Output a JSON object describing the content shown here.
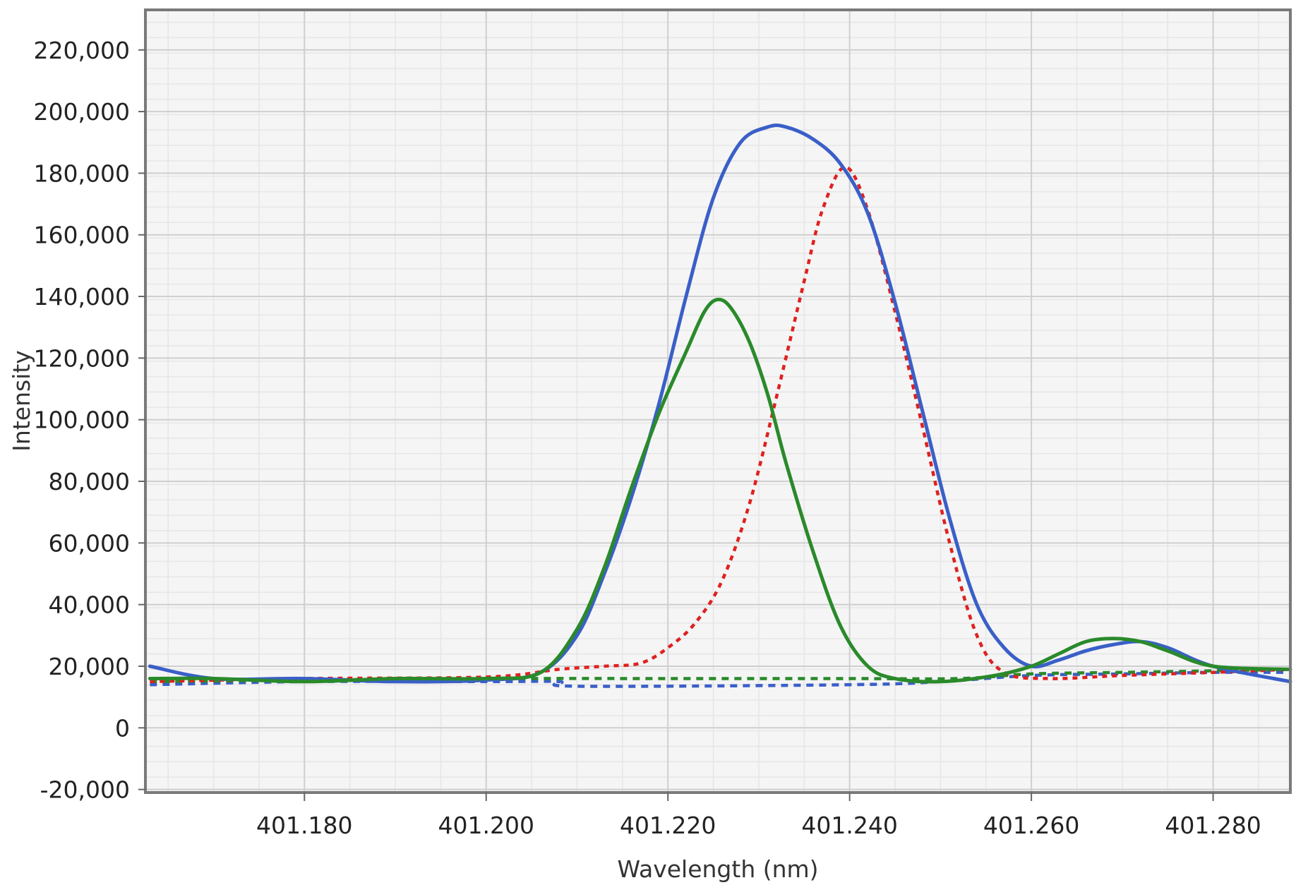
{
  "chart_data": {
    "type": "line",
    "title": "",
    "xlabel": "Wavelength (nm)",
    "ylabel": "Intensity",
    "xlim": [
      401.1625,
      401.2885
    ],
    "ylim": [
      -21000,
      233000
    ],
    "grid": true,
    "legend": "none",
    "x_ticks": [
      401.18,
      401.2,
      401.22,
      401.24,
      401.26,
      401.28
    ],
    "x_tick_labels": [
      "401.180",
      "401.200",
      "401.220",
      "401.240",
      "401.260",
      "401.280"
    ],
    "y_ticks": [
      -20000,
      0,
      20000,
      40000,
      60000,
      80000,
      100000,
      120000,
      140000,
      160000,
      180000,
      200000,
      220000
    ],
    "y_tick_labels": [
      "-20,000",
      "0",
      "20,000",
      "40,000",
      "60,000",
      "80,000",
      "100,000",
      "120,000",
      "140,000",
      "160,000",
      "180,000",
      "200,000",
      "220,000"
    ],
    "series": [
      {
        "color": "#3a5fc8",
        "style": "solid",
        "x": [
          401.163,
          401.17,
          401.18,
          401.19,
          401.2,
          401.206,
          401.21,
          401.213,
          401.216,
          401.219,
          401.222,
          401.225,
          401.228,
          401.231,
          401.233,
          401.236,
          401.239,
          401.242,
          401.245,
          401.248,
          401.251,
          401.254,
          401.257,
          401.26,
          401.263,
          401.266,
          401.269,
          401.272,
          401.275,
          401.28,
          401.2885
        ],
        "y": [
          20000,
          16000,
          16000,
          15000,
          15500,
          18000,
          30000,
          50000,
          75000,
          105000,
          140000,
          172000,
          190000,
          195000,
          195000,
          191000,
          183000,
          167000,
          138000,
          103000,
          68000,
          40000,
          26000,
          20000,
          22000,
          25000,
          27000,
          28000,
          26000,
          20000,
          15000
        ]
      },
      {
        "color": "#2a8a2a",
        "style": "solid",
        "x": [
          401.163,
          401.17,
          401.18,
          401.19,
          401.2,
          401.206,
          401.21,
          401.213,
          401.216,
          401.219,
          401.222,
          401.224,
          401.2255,
          401.227,
          401.229,
          401.231,
          401.233,
          401.236,
          401.239,
          401.242,
          401.245,
          401.25,
          401.256,
          401.26,
          401.263,
          401.266,
          401.269,
          401.272,
          401.275,
          401.28,
          401.2885
        ],
        "y": [
          16000,
          16000,
          15000,
          16000,
          16000,
          18000,
          32000,
          52000,
          78000,
          102000,
          122000,
          135000,
          139000,
          136000,
          125000,
          108000,
          86000,
          57000,
          33000,
          20000,
          16000,
          15000,
          17000,
          20000,
          24000,
          28000,
          29000,
          28000,
          25000,
          20000,
          19000
        ]
      },
      {
        "color": "#e02020",
        "style": "dotted",
        "x": [
          401.163,
          401.18,
          401.2,
          401.208,
          401.213,
          401.217,
          401.22,
          401.223,
          401.226,
          401.229,
          401.232,
          401.235,
          401.237,
          401.2395,
          401.242,
          401.245,
          401.248,
          401.251,
          401.254,
          401.257,
          401.262,
          401.27,
          401.28,
          401.2885
        ],
        "y": [
          15000,
          16000,
          16500,
          19000,
          20000,
          21000,
          26000,
          34000,
          48000,
          73000,
          108000,
          145000,
          168000,
          182000,
          168000,
          135000,
          98000,
          60000,
          30000,
          18000,
          16000,
          17000,
          18000,
          19000
        ]
      },
      {
        "color": "#3a5fc8",
        "style": "dashed",
        "x": [
          401.163,
          401.18,
          401.2,
          401.208,
          401.21,
          401.24,
          401.25,
          401.26,
          401.27,
          401.28,
          401.2885
        ],
        "y": [
          14000,
          15000,
          15000,
          15000,
          13500,
          14000,
          15000,
          17000,
          17500,
          18000,
          18000
        ]
      },
      {
        "color": "#2a8a2a",
        "style": "dashed",
        "x": [
          401.163,
          401.18,
          401.2,
          401.22,
          401.24,
          401.252,
          401.26,
          401.27,
          401.28,
          401.2885
        ],
        "y": [
          15000,
          15500,
          16000,
          16000,
          16000,
          16000,
          17500,
          18000,
          18500,
          19000
        ]
      }
    ]
  }
}
